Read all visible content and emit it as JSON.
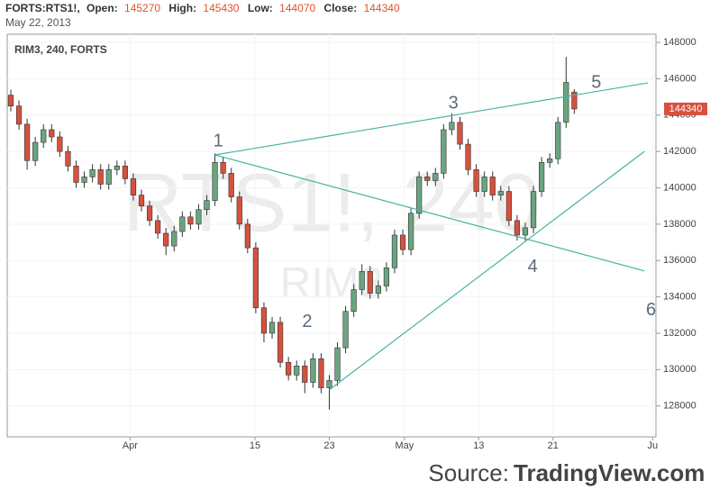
{
  "header": {
    "symbol": "FORTS:RTS1!,",
    "open_label": "Open:",
    "open": "145270",
    "high_label": "High:",
    "high": "145430",
    "low_label": "Low:",
    "low": "144070",
    "close_label": "Close:",
    "close": "144340",
    "date": "May 22, 2013"
  },
  "source_label": "Source:",
  "source_brand": "TradingView.com",
  "chart_data": {
    "type": "candlestick",
    "title": "RIM3, 240, FORTS",
    "watermark": "RTS1!, 240",
    "watermark_sub": "RIM3",
    "up_color": "#6aa57f",
    "down_color": "#d6513f",
    "wick_color": "#333333",
    "trendline_color": "#45b3a5",
    "grid": true,
    "open": [
      145100,
      144500,
      143500,
      141500,
      142500,
      143200,
      142800,
      142000,
      141200,
      140300,
      140600,
      141000,
      140200,
      141000,
      141200,
      140500,
      139600,
      139000,
      138200,
      137500,
      136800,
      137600,
      138400,
      138000,
      138800,
      139300,
      141400,
      140800,
      139500,
      138000,
      136700,
      133400,
      132000,
      132600,
      130400,
      129700,
      130200,
      129300,
      130600,
      129000,
      129400,
      131200,
      133200,
      134400,
      135400,
      134200,
      134600,
      135600,
      137400,
      136600,
      138600,
      140600,
      140400,
      140800,
      143200,
      143600,
      142400,
      141000,
      139800,
      140600,
      139600,
      139800,
      138200,
      137400,
      137800,
      139800,
      141400,
      141600,
      143600,
      145270
    ],
    "high": [
      145400,
      144800,
      143800,
      142800,
      143500,
      143500,
      143100,
      142300,
      141500,
      140900,
      141300,
      141300,
      141300,
      141500,
      141500,
      140800,
      139900,
      139300,
      138500,
      137800,
      137900,
      138700,
      138700,
      139100,
      139600,
      141900,
      141700,
      141100,
      139800,
      138300,
      137000,
      133700,
      132900,
      132900,
      130700,
      130500,
      130500,
      130900,
      130900,
      129700,
      131500,
      133500,
      134700,
      135800,
      135700,
      134900,
      135900,
      137700,
      137700,
      138900,
      140900,
      140900,
      141100,
      143500,
      144100,
      143900,
      142700,
      141300,
      140900,
      140900,
      140100,
      140100,
      138500,
      138100,
      140100,
      141700,
      141900,
      143900,
      147200,
      145430
    ],
    "low": [
      144200,
      143200,
      141000,
      141200,
      142200,
      142500,
      141700,
      140900,
      140000,
      140000,
      140300,
      139900,
      139900,
      140700,
      140200,
      139300,
      138700,
      137900,
      137200,
      136300,
      136500,
      137300,
      137700,
      137700,
      138500,
      139000,
      140500,
      139200,
      137700,
      136400,
      133100,
      131500,
      131700,
      130100,
      129400,
      129400,
      128700,
      129000,
      128700,
      127800,
      129100,
      130900,
      132900,
      134100,
      133900,
      133900,
      134300,
      135300,
      136300,
      136300,
      138300,
      140100,
      140100,
      140500,
      142900,
      142100,
      140700,
      139500,
      139500,
      139300,
      139300,
      137900,
      137100,
      137100,
      137500,
      139500,
      141100,
      141300,
      143300,
      144070
    ],
    "close": [
      144500,
      143500,
      141500,
      142500,
      143200,
      142800,
      142000,
      141200,
      140300,
      140600,
      141000,
      140200,
      141000,
      141200,
      140500,
      139600,
      139000,
      138200,
      137500,
      136800,
      137600,
      138400,
      138000,
      138800,
      139300,
      141400,
      140800,
      139500,
      138000,
      136700,
      133400,
      132000,
      132600,
      130400,
      129700,
      130200,
      129300,
      130600,
      129000,
      129400,
      131200,
      133200,
      134400,
      135400,
      134200,
      134600,
      135600,
      137400,
      136600,
      138600,
      140600,
      140400,
      140800,
      143200,
      143600,
      142400,
      141000,
      139800,
      140600,
      139600,
      139800,
      138200,
      137400,
      137800,
      139800,
      141400,
      141600,
      143600,
      145800,
      144340
    ],
    "last_price": 144340,
    "ylim": [
      126300,
      148450
    ],
    "yticks": [
      128000,
      130000,
      132000,
      134000,
      136000,
      138000,
      140000,
      142000,
      144000,
      146000,
      148000
    ],
    "xlim": [
      -0.44,
      79
    ],
    "xticks": [
      {
        "value": 14.6,
        "label": "Apr"
      },
      {
        "value": 29.9,
        "label": "15"
      },
      {
        "value": 39,
        "label": "23"
      },
      {
        "value": 48.2,
        "label": "May"
      },
      {
        "value": 57.3,
        "label": "13"
      },
      {
        "value": 66.4,
        "label": "21"
      },
      {
        "value": 78.6,
        "label": "Ju"
      }
    ],
    "trendlines": [
      {
        "x": [
          25.0,
          78.0
        ],
        "y": [
          141810,
          145770
        ]
      },
      {
        "x": [
          25.0,
          77.6
        ],
        "y": [
          141810,
          135425
        ]
      },
      {
        "x": [
          39.0,
          77.6
        ],
        "y": [
          128890,
          142010
        ]
      }
    ],
    "annotations": [
      {
        "text": "1",
        "x": 25.4,
        "y": 142550
      },
      {
        "text": "2",
        "x": 36.3,
        "y": 132600
      },
      {
        "text": "3",
        "x": 54.2,
        "y": 144630
      },
      {
        "text": "4",
        "x": 63.9,
        "y": 135620
      },
      {
        "text": "5",
        "x": 71.7,
        "y": 145770
      },
      {
        "text": "6",
        "x": 78.4,
        "y": 133250
      }
    ]
  }
}
